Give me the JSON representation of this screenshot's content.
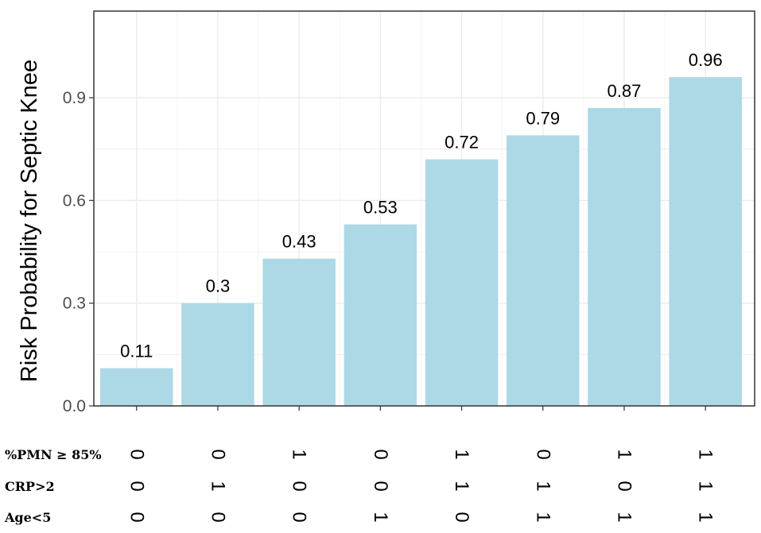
{
  "chart_data": {
    "type": "bar",
    "xlabel": "",
    "ylabel": "Risk Probability for Septic Knee",
    "ylim": [
      0,
      1.14
    ],
    "yticks": [
      0.0,
      0.3,
      0.6,
      0.9
    ],
    "ytick_labels": [
      "0.0",
      "0.3",
      "0.6",
      "0.9"
    ],
    "grid": true,
    "values": [
      0.11,
      0.3,
      0.43,
      0.53,
      0.72,
      0.79,
      0.87,
      0.96
    ],
    "value_labels": [
      "0.11",
      "0.3",
      "0.43",
      "0.53",
      "0.72",
      "0.79",
      "0.87",
      "0.96"
    ],
    "bar_color": "#add8e6",
    "table_rows": [
      {
        "label": "%PMN ≥ 85%",
        "values": [
          "0",
          "0",
          "1",
          "0",
          "1",
          "0",
          "1",
          "1"
        ]
      },
      {
        "label": "CRP>2",
        "values": [
          "0",
          "1",
          "0",
          "0",
          "1",
          "1",
          "0",
          "1"
        ]
      },
      {
        "label": "Age<5",
        "values": [
          "0",
          "0",
          "0",
          "1",
          "0",
          "1",
          "1",
          "1"
        ]
      }
    ]
  }
}
